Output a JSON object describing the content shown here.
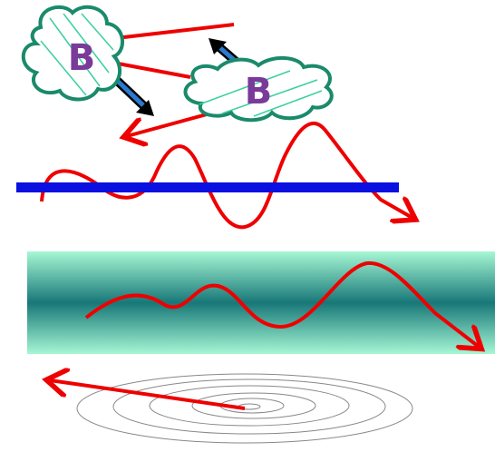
{
  "nodes": [
    {
      "label": "B"
    },
    {
      "label": "B"
    }
  ]
}
